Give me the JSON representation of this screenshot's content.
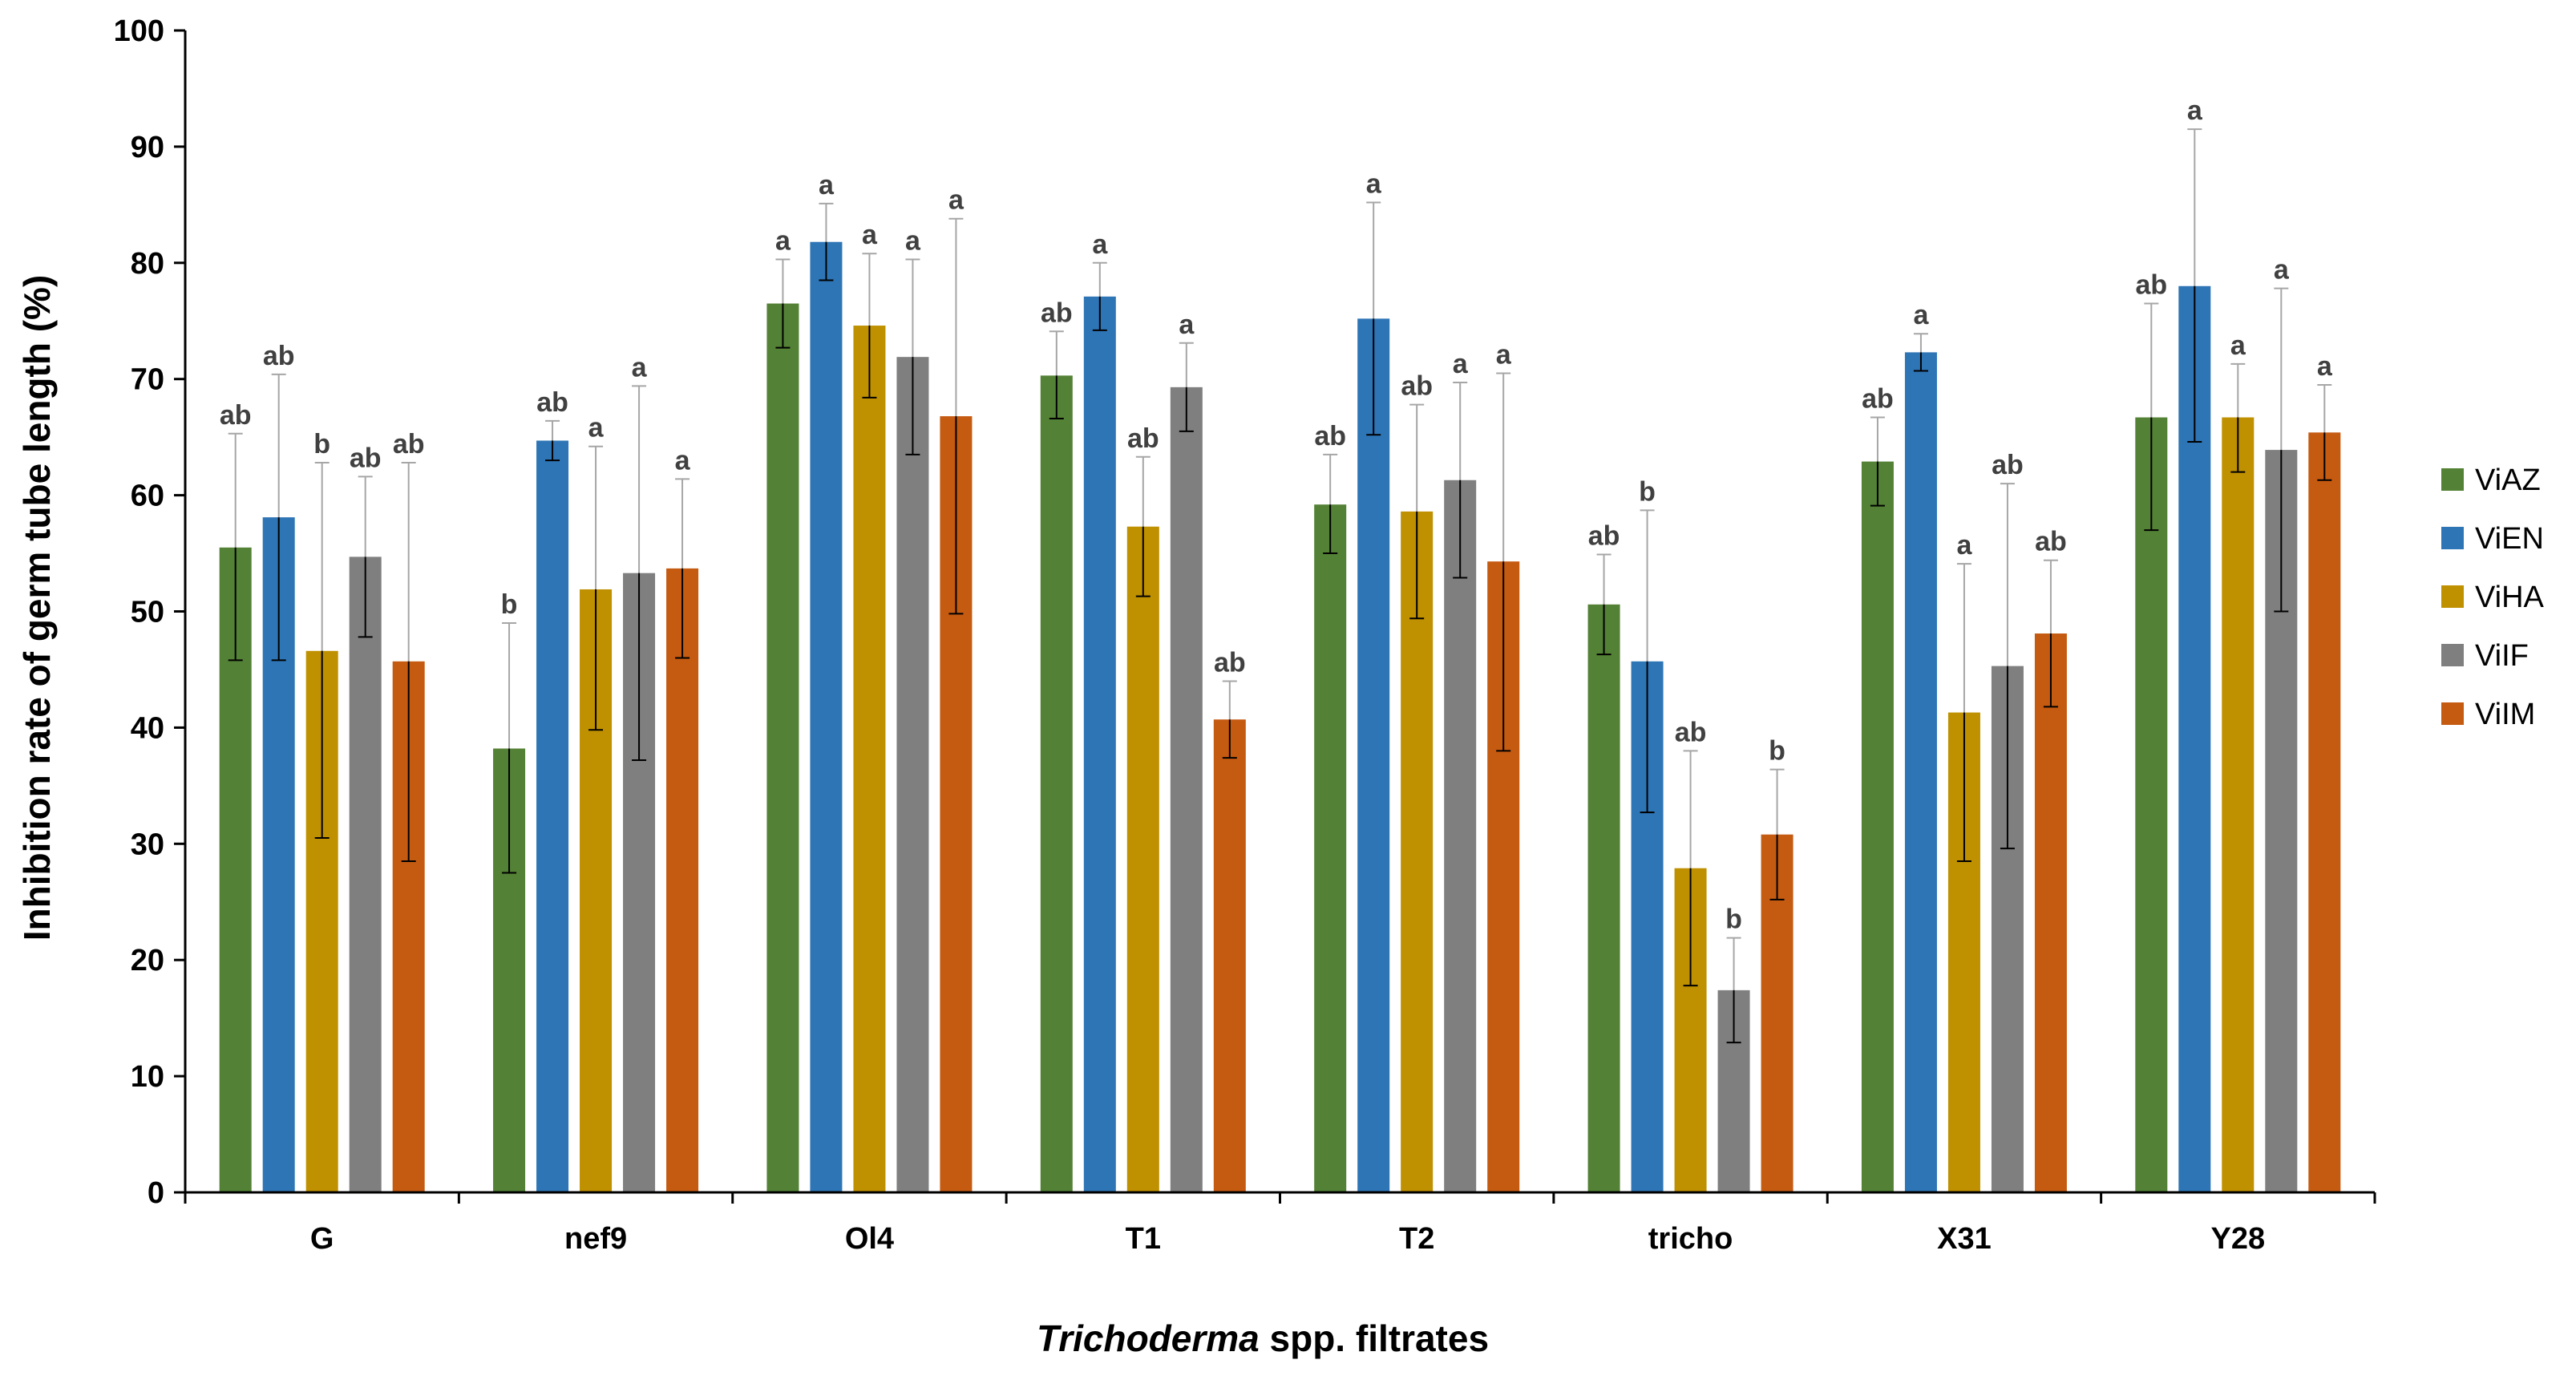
{
  "chart_data": {
    "type": "bar",
    "title": "",
    "xlabel_italic": "Trichoderma",
    "xlabel_rest": " spp. filtrates",
    "ylabel": "Inhibition rate of germ tube length (%)",
    "ylim": [
      0,
      100
    ],
    "yticks": [
      0,
      10,
      20,
      30,
      40,
      50,
      60,
      70,
      80,
      90,
      100
    ],
    "grid": false,
    "legend_position": "right",
    "categories": [
      "G",
      "nef9",
      "Ol4",
      "T1",
      "T2",
      "tricho",
      "X31",
      "Y28"
    ],
    "series": [
      {
        "name": "ViAZ",
        "color": "#538135",
        "values": [
          55.5,
          38.2,
          76.5,
          70.3,
          59.2,
          50.6,
          62.9,
          66.7
        ],
        "err_low": [
          45.8,
          27.5,
          72.7,
          66.6,
          55.0,
          46.3,
          59.1,
          57.0
        ],
        "err_high": [
          65.3,
          49.0,
          80.3,
          74.1,
          63.5,
          54.9,
          66.7,
          76.5
        ],
        "sig": [
          "ab",
          "b",
          "a",
          "ab",
          "ab",
          "ab",
          "ab",
          "ab"
        ]
      },
      {
        "name": "ViEN",
        "color": "#2E75B6",
        "values": [
          58.1,
          64.7,
          81.8,
          77.1,
          75.2,
          45.7,
          72.3,
          78.0
        ],
        "err_low": [
          45.8,
          63.0,
          78.5,
          74.2,
          65.2,
          32.7,
          70.7,
          64.6
        ],
        "err_high": [
          70.4,
          66.4,
          85.1,
          80.0,
          85.2,
          58.7,
          73.9,
          91.5
        ],
        "sig": [
          "ab",
          "ab",
          "a",
          "a",
          "a",
          "b",
          "a",
          "a"
        ]
      },
      {
        "name": "ViHA",
        "color": "#BF9000",
        "values": [
          46.6,
          51.9,
          74.6,
          57.3,
          58.6,
          27.9,
          41.3,
          66.7
        ],
        "err_low": [
          30.5,
          39.8,
          68.4,
          51.3,
          49.4,
          17.8,
          28.5,
          62.0
        ],
        "err_high": [
          62.8,
          64.2,
          80.8,
          63.3,
          67.8,
          38.0,
          54.1,
          71.3
        ],
        "sig": [
          "b",
          "a",
          "a",
          "ab",
          "ab",
          "ab",
          "a",
          "a"
        ]
      },
      {
        "name": "ViIF",
        "color": "#7F7F7F",
        "values": [
          54.7,
          53.3,
          71.9,
          69.3,
          61.3,
          17.4,
          45.3,
          63.9
        ],
        "err_low": [
          47.8,
          37.2,
          63.5,
          65.5,
          52.9,
          12.9,
          29.6,
          50.0
        ],
        "err_high": [
          61.6,
          69.4,
          80.3,
          73.1,
          69.7,
          21.9,
          61.0,
          77.8
        ],
        "sig": [
          "ab",
          "a",
          "a",
          "a",
          "a",
          "b",
          "ab",
          "a"
        ]
      },
      {
        "name": "ViIM",
        "color": "#C55A11",
        "values": [
          45.7,
          53.7,
          66.8,
          40.7,
          54.3,
          30.8,
          48.1,
          65.4
        ],
        "err_low": [
          28.5,
          46.0,
          49.8,
          37.4,
          38.0,
          25.2,
          41.8,
          61.3
        ],
        "err_high": [
          62.8,
          61.4,
          83.8,
          44.0,
          70.5,
          36.4,
          54.4,
          69.5
        ],
        "sig": [
          "ab",
          "a",
          "a",
          "ab",
          "a",
          "b",
          "ab",
          "a"
        ]
      }
    ]
  }
}
